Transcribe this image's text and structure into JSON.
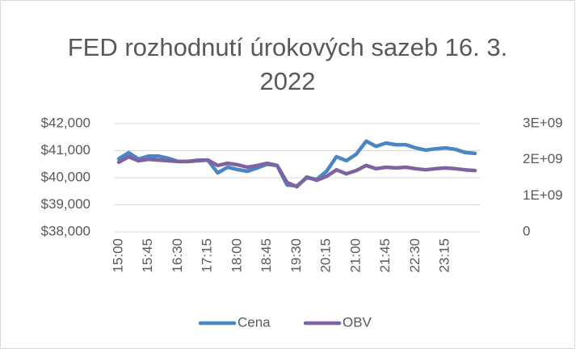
{
  "chart_data": {
    "type": "line",
    "title": "FED rozhodnutí úrokových sazeb 16. 3. 2022",
    "categories": [
      "15:00",
      null,
      null,
      "15:45",
      null,
      null,
      "16:30",
      null,
      null,
      "17:15",
      null,
      null,
      "18:00",
      null,
      null,
      "18:45",
      null,
      null,
      "19:30",
      null,
      null,
      "20:15",
      null,
      null,
      "21:00",
      null,
      null,
      "21:45",
      null,
      null,
      "22:30",
      null,
      null,
      "23:15",
      null,
      null,
      null
    ],
    "series": [
      {
        "name": "Cena",
        "color": "#4a86c5",
        "values": [
          40700,
          40925,
          40690,
          40800,
          40800,
          40720,
          40600,
          40600,
          40650,
          40650,
          40180,
          40390,
          40300,
          40240,
          40360,
          40500,
          40450,
          39730,
          39700,
          40000,
          39940,
          40240,
          40780,
          40630,
          40870,
          41350,
          41160,
          41280,
          41220,
          41220,
          41100,
          41020,
          41070,
          41100,
          41050,
          40930,
          40900
        ]
      },
      {
        "name": "OBV",
        "color": "#7f63a1",
        "axis": "y2",
        "values": [
          1930000000,
          2080000000,
          1970000000,
          2010000000,
          1990000000,
          1970000000,
          1950000000,
          1950000000,
          1970000000,
          1990000000,
          1840000000,
          1900000000,
          1860000000,
          1790000000,
          1840000000,
          1900000000,
          1840000000,
          1370000000,
          1250000000,
          1520000000,
          1430000000,
          1540000000,
          1720000000,
          1610000000,
          1700000000,
          1840000000,
          1750000000,
          1790000000,
          1770000000,
          1790000000,
          1750000000,
          1720000000,
          1750000000,
          1770000000,
          1750000000,
          1720000000,
          1700000000
        ]
      }
    ],
    "ylim": [
      38000,
      42000
    ],
    "yticks": [
      {
        "value": 38000,
        "label": "$38,000"
      },
      {
        "value": 39000,
        "label": "$39,000"
      },
      {
        "value": 40000,
        "label": "$40,000"
      },
      {
        "value": 41000,
        "label": "$41,000"
      },
      {
        "value": 42000,
        "label": "$42,000"
      }
    ],
    "y2lim": [
      0,
      3000000000
    ],
    "y2ticks": [
      0,
      {
        "value": 1000000000,
        "label": "1E+09"
      },
      {
        "value": 2000000000,
        "label": "2E+09"
      },
      {
        "value": 3000000000,
        "label": "3E+09"
      }
    ],
    "grid": true,
    "legend": "bottom"
  }
}
